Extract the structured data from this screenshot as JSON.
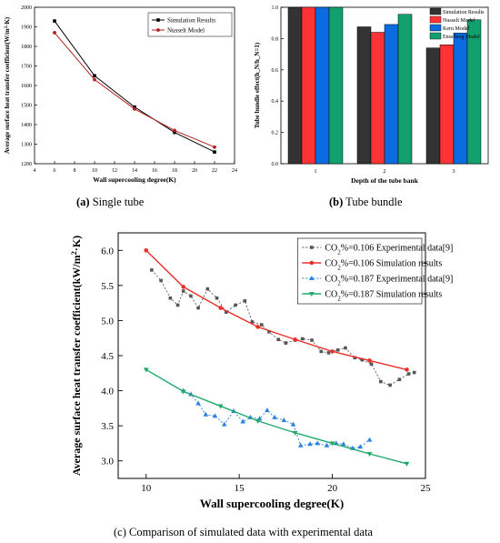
{
  "captions": {
    "a_letter": "(a)",
    "a_text": " Single tube",
    "b_letter": "(b)",
    "b_text": " Tube bundle",
    "c_text": "(c) Comparison of simulated data with experimental data"
  },
  "colors": {
    "simulation": "#000000",
    "nusselt": "#b41e1e",
    "bar_simulation": "#333333",
    "bar_nusselt": "#ff3333",
    "bar_kern": "#0a6ce0",
    "bar_enssiberg": "#12a06e",
    "co2_106": "#e8302a",
    "co2_187": "#1ea96b",
    "exp_106": "#555555",
    "exp_187": "#2a82dc"
  },
  "chart_data": [
    {
      "type": "line",
      "xlabel": "Wall supercooling degree(K)",
      "ylabel": "Average surface heat transfer coefficient(W/m²·K)",
      "xlim": [
        4,
        24
      ],
      "ylim": [
        1200,
        2000
      ],
      "xticks": [
        4,
        6,
        8,
        10,
        12,
        14,
        16,
        18,
        20,
        22,
        24
      ],
      "yticks": [
        1200,
        1300,
        1400,
        1500,
        1600,
        1700,
        1800,
        1900,
        2000
      ],
      "legend_position": "top-right",
      "series": [
        {
          "name": "Simulation Results",
          "x": [
            6,
            10,
            14,
            18,
            22
          ],
          "y": [
            1930,
            1650,
            1490,
            1360,
            1260
          ]
        },
        {
          "name": "Nusselt Model",
          "x": [
            6,
            10,
            14,
            18,
            22
          ],
          "y": [
            1870,
            1630,
            1480,
            1370,
            1285
          ]
        }
      ]
    },
    {
      "type": "bar",
      "xlabel": "Depth of the tube bank",
      "ylabel": "Tube bundle effect(h_N/h_N=1)",
      "categories": [
        "1",
        "2",
        "3"
      ],
      "ylim": [
        0,
        1.0
      ],
      "yticks": [
        0.0,
        0.2,
        0.4,
        0.6,
        0.8,
        1.0
      ],
      "legend_position": "top-right",
      "series": [
        {
          "name": "Simulation Results",
          "values": [
            1.0,
            0.875,
            0.74
          ]
        },
        {
          "name": "Nusselt Model",
          "values": [
            1.0,
            0.84,
            0.76
          ]
        },
        {
          "name": "Kern Model",
          "values": [
            1.0,
            0.89,
            0.835
          ]
        },
        {
          "name": "Enssiberg Model",
          "values": [
            1.0,
            0.955,
            0.92
          ]
        }
      ]
    },
    {
      "type": "line",
      "xlabel": "Wall supercooling degree(K)",
      "ylabel": "Average surface heat transfer coefficient(kW/m²·K)",
      "xlim": [
        8.5,
        25
      ],
      "ylim": [
        2.75,
        6.25
      ],
      "xticks": [
        10,
        15,
        20,
        25
      ],
      "xtick_labels": [
        "10",
        "15",
        "20",
        "25"
      ],
      "yticks": [
        3.0,
        3.5,
        4.0,
        4.5,
        5.0,
        5.5,
        6.0
      ],
      "ytick_labels": [
        "3.0",
        "3.5",
        "4.0",
        "4.5",
        "5.0",
        "5.5",
        "6.0"
      ],
      "legend_position": "top-right",
      "series": [
        {
          "name": "CO2%=0.106 Experimental data[9]",
          "x": [
            10.3,
            10.8,
            11.3,
            11.7,
            12.0,
            12.4,
            12.8,
            13.3,
            13.8,
            14.3,
            14.8,
            15.3,
            15.7,
            16.2,
            16.6,
            17.1,
            17.5,
            18.0,
            18.4,
            18.9,
            19.4,
            19.8,
            20.3,
            20.7,
            21.2,
            21.6,
            22.1,
            22.6,
            23.1,
            23.6,
            24.1,
            24.4
          ],
          "y": [
            5.72,
            5.57,
            5.32,
            5.22,
            5.42,
            5.35,
            5.18,
            5.45,
            5.32,
            5.12,
            5.22,
            5.28,
            4.98,
            4.94,
            4.84,
            4.73,
            4.68,
            4.72,
            4.74,
            4.72,
            4.56,
            4.54,
            4.58,
            4.61,
            4.47,
            4.44,
            4.38,
            4.13,
            4.08,
            4.16,
            4.24,
            4.26
          ]
        },
        {
          "name": "CO2%=0.106 Simulation results",
          "x": [
            10,
            12,
            14,
            16,
            18,
            20,
            22,
            24
          ],
          "y": [
            6.0,
            5.48,
            5.18,
            4.91,
            4.73,
            4.56,
            4.43,
            4.3
          ]
        },
        {
          "name": "CO2%=0.187 Experimental data[9]",
          "x": [
            12.0,
            12.4,
            12.8,
            13.2,
            13.7,
            14.2,
            14.7,
            15.2,
            15.6,
            16.1,
            16.5,
            16.9,
            17.4,
            17.9,
            18.3,
            18.8,
            19.2,
            19.7,
            20.2,
            20.6,
            21.1,
            21.5,
            22.0
          ],
          "y": [
            4.0,
            3.95,
            3.82,
            3.66,
            3.64,
            3.52,
            3.71,
            3.56,
            3.62,
            3.6,
            3.72,
            3.62,
            3.58,
            3.52,
            3.22,
            3.24,
            3.25,
            3.22,
            3.25,
            3.24,
            3.18,
            3.2,
            3.3
          ]
        },
        {
          "name": "CO2%=0.187 Simulation results",
          "x": [
            10,
            12,
            14,
            16,
            18,
            20,
            22,
            24
          ],
          "y": [
            4.3,
            3.99,
            3.78,
            3.57,
            3.4,
            3.25,
            3.1,
            2.96
          ]
        }
      ]
    }
  ]
}
